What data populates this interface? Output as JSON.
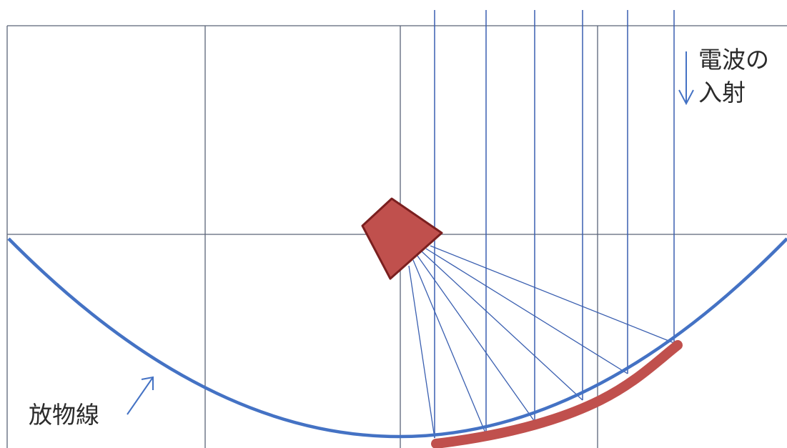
{
  "labels": {
    "incident_wave_line1": "電波の",
    "incident_wave_line2": "入射",
    "parabola": "放物線"
  },
  "colors": {
    "grid": "#5a6478",
    "parabola": "#4472c4",
    "rays": "#3a5fb0",
    "feed_fill": "#c0504d",
    "feed_stroke": "#7a1f1f",
    "highlight": "#c0504d",
    "text": "#2b2b2b"
  }
}
